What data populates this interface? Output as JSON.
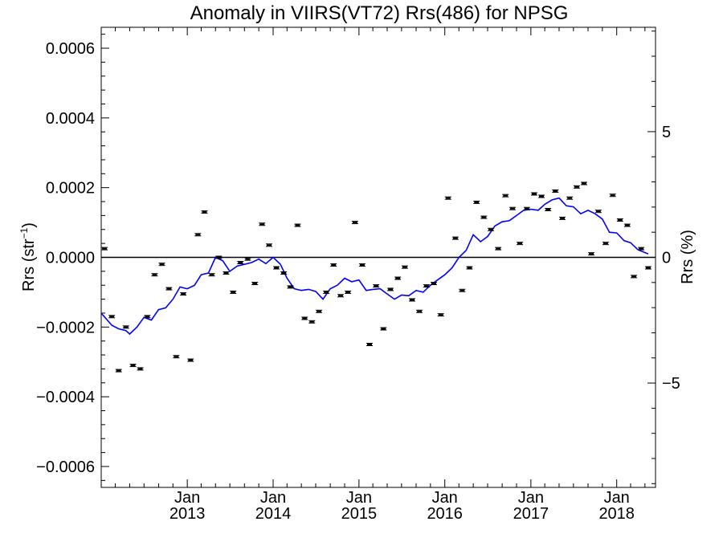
{
  "chart_data": {
    "type": "scatter",
    "title": "Anomaly in VIIRS(VT72) Rrs(486) for NPSG",
    "ylabel_left": "Rrs (str",
    "ylabel_left_sup": "−1",
    "ylabel_left_close": ")",
    "ylabel_right": "Rrs (%)",
    "x_range": [
      "2012-01-01",
      "2018-06-15"
    ],
    "ylim_left": [
      -0.00066,
      0.00066
    ],
    "ylim_right": [
      -9.15,
      9.15
    ],
    "x_ticks": [
      {
        "date": "2013-01-01",
        "month": "Jan",
        "year": "2013"
      },
      {
        "date": "2014-01-01",
        "month": "Jan",
        "year": "2014"
      },
      {
        "date": "2015-01-01",
        "month": "Jan",
        "year": "2015"
      },
      {
        "date": "2016-01-01",
        "month": "Jan",
        "year": "2016"
      },
      {
        "date": "2017-01-01",
        "month": "Jan",
        "year": "2017"
      },
      {
        "date": "2018-01-01",
        "month": "Jan",
        "year": "2018"
      }
    ],
    "y_ticks_left": [
      {
        "value": 0.0006,
        "label": "0.0006"
      },
      {
        "value": 0.0004,
        "label": "0.0004"
      },
      {
        "value": 0.0002,
        "label": "0.0002"
      },
      {
        "value": 0.0,
        "label": "0.0000"
      },
      {
        "value": -0.0002,
        "label": "−0.0002"
      },
      {
        "value": -0.0004,
        "label": "−0.0004"
      },
      {
        "value": -0.0006,
        "label": "−0.0006"
      }
    ],
    "y_ticks_right": [
      {
        "value": 5,
        "label": "5"
      },
      {
        "value": 0,
        "label": "0"
      },
      {
        "value": -5,
        "label": "−5"
      }
    ],
    "zero_line": true,
    "series": [
      {
        "kind": "monthly-points-with-error-bars",
        "color": "#000000",
        "points": [
          {
            "x": "2012-01-15",
            "y": 2.5e-05
          },
          {
            "x": "2012-02-15",
            "y": -0.00017
          },
          {
            "x": "2012-03-15",
            "y": -0.000325
          },
          {
            "x": "2012-04-15",
            "y": -0.0002
          },
          {
            "x": "2012-05-15",
            "y": -0.00031
          },
          {
            "x": "2012-06-15",
            "y": -0.00032
          },
          {
            "x": "2012-07-15",
            "y": -0.00017
          },
          {
            "x": "2012-08-15",
            "y": -5e-05
          },
          {
            "x": "2012-09-15",
            "y": -2e-05
          },
          {
            "x": "2012-10-15",
            "y": -9e-05
          },
          {
            "x": "2012-11-15",
            "y": -0.000285
          },
          {
            "x": "2012-12-15",
            "y": -0.000105
          },
          {
            "x": "2013-01-15",
            "y": -0.000295
          },
          {
            "x": "2013-02-15",
            "y": 6.5e-05
          },
          {
            "x": "2013-03-15",
            "y": 0.00013
          },
          {
            "x": "2013-04-15",
            "y": -5e-05
          },
          {
            "x": "2013-05-15",
            "y": 0.0
          },
          {
            "x": "2013-06-15",
            "y": -4.5e-05
          },
          {
            "x": "2013-07-15",
            "y": -0.0001
          },
          {
            "x": "2013-08-15",
            "y": -1.5e-05
          },
          {
            "x": "2013-09-15",
            "y": -5e-06
          },
          {
            "x": "2013-10-15",
            "y": -7.5e-05
          },
          {
            "x": "2013-11-15",
            "y": 9.5e-05
          },
          {
            "x": "2013-12-15",
            "y": 3.5e-05
          },
          {
            "x": "2014-01-15",
            "y": -3e-05
          },
          {
            "x": "2014-02-15",
            "y": -4.5e-05
          },
          {
            "x": "2014-03-15",
            "y": -8.5e-05
          },
          {
            "x": "2014-04-15",
            "y": 9.2e-05
          },
          {
            "x": "2014-05-15",
            "y": -0.000175
          },
          {
            "x": "2014-06-15",
            "y": -0.000185
          },
          {
            "x": "2014-07-15",
            "y": -0.000155
          },
          {
            "x": "2014-08-15",
            "y": -0.0001
          },
          {
            "x": "2014-09-15",
            "y": -2.2e-05
          },
          {
            "x": "2014-10-15",
            "y": -0.00011
          },
          {
            "x": "2014-11-15",
            "y": -0.0001
          },
          {
            "x": "2014-12-15",
            "y": 0.0001
          },
          {
            "x": "2015-01-15",
            "y": -2.2e-05
          },
          {
            "x": "2015-02-15",
            "y": -0.00025
          },
          {
            "x": "2015-03-15",
            "y": -8.2e-05
          },
          {
            "x": "2015-04-15",
            "y": -0.000205
          },
          {
            "x": "2015-05-15",
            "y": -9.2e-05
          },
          {
            "x": "2015-06-15",
            "y": -6e-05
          },
          {
            "x": "2015-07-15",
            "y": -2.8e-05
          },
          {
            "x": "2015-08-15",
            "y": -0.000122
          },
          {
            "x": "2015-09-15",
            "y": -0.000155
          },
          {
            "x": "2015-10-15",
            "y": -8.2e-05
          },
          {
            "x": "2015-11-15",
            "y": -7.5e-05
          },
          {
            "x": "2015-12-15",
            "y": -0.000165
          },
          {
            "x": "2016-01-15",
            "y": 0.00017
          },
          {
            "x": "2016-02-15",
            "y": 5.5e-05
          },
          {
            "x": "2016-03-15",
            "y": -9.5e-05
          },
          {
            "x": "2016-04-15",
            "y": -3e-05
          },
          {
            "x": "2016-05-15",
            "y": 0.000158
          },
          {
            "x": "2016-06-15",
            "y": 0.000115
          },
          {
            "x": "2016-07-15",
            "y": 8e-05
          },
          {
            "x": "2016-08-15",
            "y": 2.5e-05
          },
          {
            "x": "2016-09-15",
            "y": 0.000177
          },
          {
            "x": "2016-10-15",
            "y": 0.00014
          },
          {
            "x": "2016-11-15",
            "y": 4e-05
          },
          {
            "x": "2016-12-15",
            "y": 0.00014
          },
          {
            "x": "2017-01-15",
            "y": 0.000182
          },
          {
            "x": "2017-02-15",
            "y": 0.000175
          },
          {
            "x": "2017-03-15",
            "y": 0.000137
          },
          {
            "x": "2017-04-15",
            "y": 0.00019
          },
          {
            "x": "2017-05-15",
            "y": 0.000112
          },
          {
            "x": "2017-06-15",
            "y": 0.00017
          },
          {
            "x": "2017-07-15",
            "y": 0.000202
          },
          {
            "x": "2017-08-15",
            "y": 0.000212
          },
          {
            "x": "2017-09-15",
            "y": 1e-05
          },
          {
            "x": "2017-10-15",
            "y": 0.000132
          },
          {
            "x": "2017-11-15",
            "y": 4e-05
          },
          {
            "x": "2017-12-15",
            "y": 0.000178
          },
          {
            "x": "2018-01-15",
            "y": 0.000107
          },
          {
            "x": "2018-02-15",
            "y": 9.2e-05
          },
          {
            "x": "2018-03-15",
            "y": -5.5e-05
          },
          {
            "x": "2018-04-15",
            "y": 2.5e-05
          },
          {
            "x": "2018-05-15",
            "y": -3e-05
          }
        ]
      },
      {
        "kind": "running-mean-line",
        "color": "#0000ff",
        "points": [
          {
            "x": "2012-01-01",
            "y": -0.00016
          },
          {
            "x": "2012-02-15",
            "y": -0.000195
          },
          {
            "x": "2012-03-15",
            "y": -0.000205
          },
          {
            "x": "2012-04-15",
            "y": -0.00021
          },
          {
            "x": "2012-05-01",
            "y": -0.00022
          },
          {
            "x": "2012-06-01",
            "y": -0.0002
          },
          {
            "x": "2012-07-01",
            "y": -0.000172
          },
          {
            "x": "2012-08-01",
            "y": -0.00018
          },
          {
            "x": "2012-09-01",
            "y": -0.00015
          },
          {
            "x": "2012-10-01",
            "y": -0.000145
          },
          {
            "x": "2012-11-01",
            "y": -0.00012
          },
          {
            "x": "2012-12-01",
            "y": -8.5e-05
          },
          {
            "x": "2013-01-01",
            "y": -9e-05
          },
          {
            "x": "2013-02-01",
            "y": -8e-05
          },
          {
            "x": "2013-03-01",
            "y": -5e-05
          },
          {
            "x": "2013-04-01",
            "y": -4.5e-05
          },
          {
            "x": "2013-05-01",
            "y": 0.0
          },
          {
            "x": "2013-06-01",
            "y": -1e-05
          },
          {
            "x": "2013-07-01",
            "y": -4e-05
          },
          {
            "x": "2013-08-01",
            "y": -2.5e-05
          },
          {
            "x": "2013-09-01",
            "y": -2e-05
          },
          {
            "x": "2013-10-01",
            "y": -1.5e-05
          },
          {
            "x": "2013-11-01",
            "y": -5e-06
          },
          {
            "x": "2013-12-01",
            "y": -1.8e-05
          },
          {
            "x": "2014-01-01",
            "y": 0.0
          },
          {
            "x": "2014-02-01",
            "y": -2e-05
          },
          {
            "x": "2014-03-01",
            "y": -6e-05
          },
          {
            "x": "2014-04-01",
            "y": -9e-05
          },
          {
            "x": "2014-05-01",
            "y": -9.5e-05
          },
          {
            "x": "2014-06-01",
            "y": -9.2e-05
          },
          {
            "x": "2014-07-01",
            "y": -9.8e-05
          },
          {
            "x": "2014-08-01",
            "y": -0.00012
          },
          {
            "x": "2014-09-01",
            "y": -9e-05
          },
          {
            "x": "2014-10-01",
            "y": -8e-05
          },
          {
            "x": "2014-11-01",
            "y": -6e-05
          },
          {
            "x": "2014-12-01",
            "y": -7e-05
          },
          {
            "x": "2015-01-01",
            "y": -6.5e-05
          },
          {
            "x": "2015-02-01",
            "y": -9.5e-05
          },
          {
            "x": "2015-03-01",
            "y": -9.2e-05
          },
          {
            "x": "2015-04-01",
            "y": -9e-05
          },
          {
            "x": "2015-05-01",
            "y": -0.000105
          },
          {
            "x": "2015-06-01",
            "y": -0.00012
          },
          {
            "x": "2015-07-01",
            "y": -0.000108
          },
          {
            "x": "2015-08-01",
            "y": -0.00011
          },
          {
            "x": "2015-09-01",
            "y": -9.5e-05
          },
          {
            "x": "2015-10-01",
            "y": -0.0001
          },
          {
            "x": "2015-11-01",
            "y": -8e-05
          },
          {
            "x": "2015-12-01",
            "y": -6.5e-05
          },
          {
            "x": "2016-01-01",
            "y": -5e-05
          },
          {
            "x": "2016-02-01",
            "y": -3e-05
          },
          {
            "x": "2016-03-01",
            "y": 0.0
          },
          {
            "x": "2016-04-01",
            "y": 2e-05
          },
          {
            "x": "2016-05-01",
            "y": 6.5e-05
          },
          {
            "x": "2016-06-01",
            "y": 4.5e-05
          },
          {
            "x": "2016-07-01",
            "y": 6e-05
          },
          {
            "x": "2016-08-01",
            "y": 9e-05
          },
          {
            "x": "2016-09-01",
            "y": 0.000102
          },
          {
            "x": "2016-10-01",
            "y": 0.000105
          },
          {
            "x": "2016-11-01",
            "y": 0.00012
          },
          {
            "x": "2016-12-01",
            "y": 0.000135
          },
          {
            "x": "2017-01-01",
            "y": 0.000138
          },
          {
            "x": "2017-02-01",
            "y": 0.000135
          },
          {
            "x": "2017-03-01",
            "y": 0.000152
          },
          {
            "x": "2017-04-01",
            "y": 0.000165
          },
          {
            "x": "2017-05-01",
            "y": 0.00017
          },
          {
            "x": "2017-06-01",
            "y": 0.000148
          },
          {
            "x": "2017-07-01",
            "y": 0.000145
          },
          {
            "x": "2017-08-01",
            "y": 0.000125
          },
          {
            "x": "2017-09-01",
            "y": 0.000135
          },
          {
            "x": "2017-10-01",
            "y": 0.000125
          },
          {
            "x": "2017-11-01",
            "y": 0.00011
          },
          {
            "x": "2017-12-01",
            "y": 7.2e-05
          },
          {
            "x": "2018-01-01",
            "y": 7e-05
          },
          {
            "x": "2018-02-01",
            "y": 4.8e-05
          },
          {
            "x": "2018-03-01",
            "y": 4.2e-05
          },
          {
            "x": "2018-04-01",
            "y": 2.2e-05
          },
          {
            "x": "2018-05-15",
            "y": 1e-05
          }
        ]
      }
    ]
  }
}
